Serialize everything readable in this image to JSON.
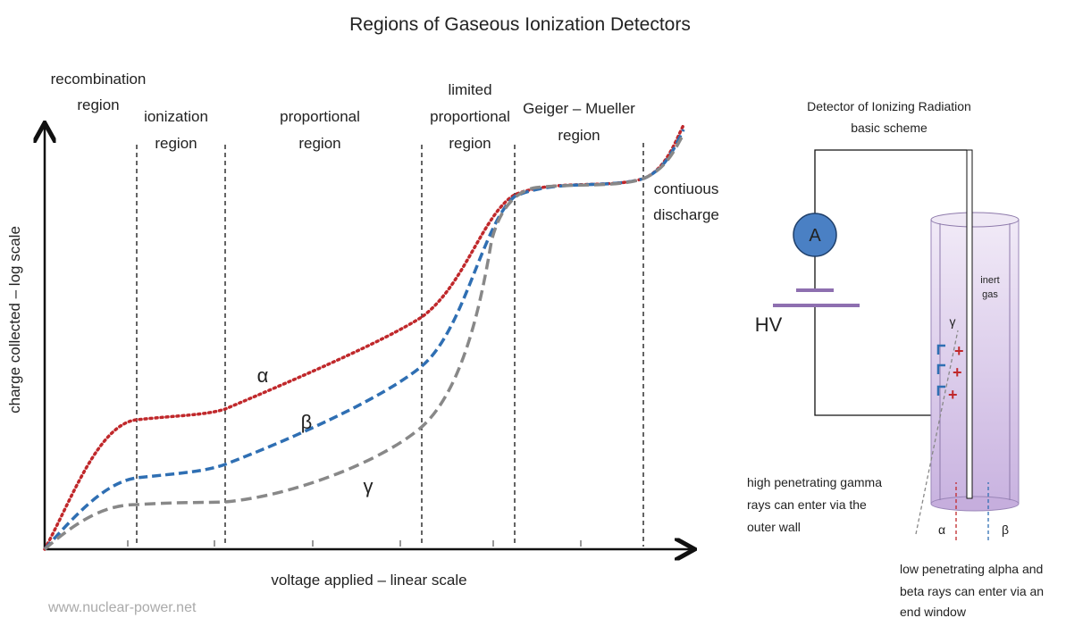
{
  "title": "Regions of Gaseous Ionization Detectors",
  "regions": [
    {
      "lines": [
        "recombination",
        "region"
      ]
    },
    {
      "lines": [
        "ionization",
        "region"
      ]
    },
    {
      "lines": [
        "proportional",
        "region"
      ]
    },
    {
      "lines": [
        "limited",
        "proportional",
        "region"
      ]
    },
    {
      "lines": [
        "Geiger – Mueller",
        "region"
      ]
    },
    {
      "lines": [
        "contiuous",
        "discharge"
      ]
    }
  ],
  "y_axis_label": "charge collected – log scale",
  "x_axis_label": "voltage applied – linear scale",
  "curve_labels": [
    "α",
    "β",
    "γ"
  ],
  "watermark": "www.nuclear-power.net",
  "detector": {
    "title": [
      "Detector of Ionizing Radiation",
      "basic scheme"
    ],
    "ammeter": "A",
    "voltage": "HV",
    "gas": [
      "inert",
      "gas"
    ],
    "gamma": "γ",
    "gamma_note": [
      "high  penetrating  gamma",
      "rays  can  enter  via  the",
      "outer wall"
    ],
    "alpha": "α",
    "beta": "β",
    "end_note": [
      "low penetrating alpha and",
      "beta rays can enter via an",
      "end window"
    ]
  }
}
